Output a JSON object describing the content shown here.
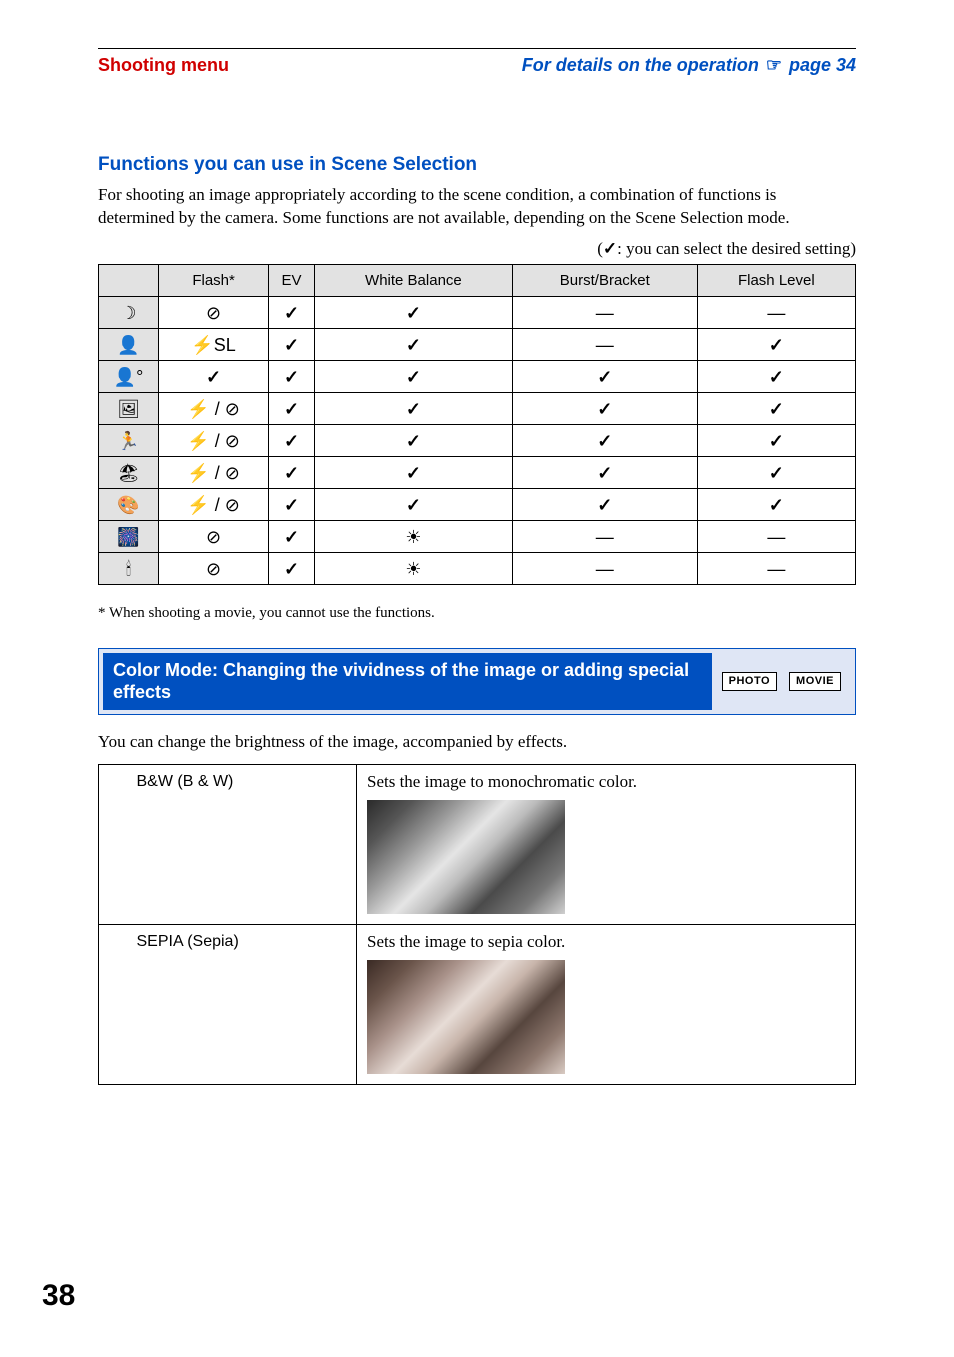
{
  "header": {
    "left": "Shooting menu",
    "right_prefix": "For details on the operation ",
    "right_suffix": " page 34",
    "hand_glyph": "☞"
  },
  "subheading": "Functions you can use in Scene Selection",
  "intro": "For shooting an image appropriately according to the scene condition, a combination of functions is determined by the camera. Some functions are not available, depending on the Scene Selection mode.",
  "legend": {
    "open": "(",
    "check": "✓",
    "text": ": you can select the desired setting)",
    "close": ""
  },
  "func_table": {
    "columns": [
      "Flash*",
      "EV",
      "White Balance",
      "Burst/Bracket",
      "Flash Level"
    ],
    "row_icons": [
      "☽",
      "👤",
      "👤°",
      "🖼",
      "🏃",
      "🏖",
      "🎨",
      "🎆",
      "🕯"
    ],
    "cells": [
      [
        "⊘",
        "✓",
        "✓",
        "—",
        "—"
      ],
      [
        "⚡SL",
        "✓",
        "✓",
        "—",
        "✓"
      ],
      [
        "✓",
        "✓",
        "✓",
        "✓",
        "✓"
      ],
      [
        "⚡ / ⊘",
        "✓",
        "✓",
        "✓",
        "✓"
      ],
      [
        "⚡ / ⊘",
        "✓",
        "✓",
        "✓",
        "✓"
      ],
      [
        "⚡ / ⊘",
        "✓",
        "✓",
        "✓",
        "✓"
      ],
      [
        "⚡ / ⊘",
        "✓",
        "✓",
        "✓",
        "✓"
      ],
      [
        "⊘",
        "✓",
        "☀",
        "—",
        "—"
      ],
      [
        "⊘",
        "✓",
        "☀",
        "—",
        "—"
      ]
    ]
  },
  "footnote": "* When shooting a movie, you cannot use the functions.",
  "section_bar": {
    "title": "Color Mode: Changing the vividness of the image or adding special effects",
    "badge1": "PHOTO",
    "badge2": "MOVIE"
  },
  "desc": "You can change the brightness of the image, accompanied by effects.",
  "modes": [
    {
      "name": "B&W (B & W)",
      "desc": "Sets the image to monochromatic color.",
      "sample_class": "bw-sample"
    },
    {
      "name": "SEPIA (Sepia)",
      "desc": "Sets the image to sepia color.",
      "sample_class": "sepia-sample"
    }
  ],
  "page_number": "38"
}
